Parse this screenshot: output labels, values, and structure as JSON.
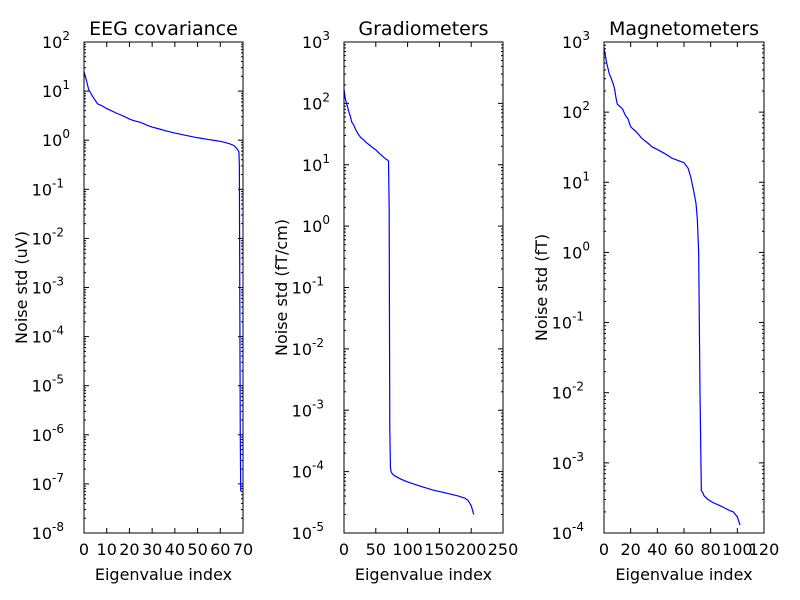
{
  "figure": {
    "background": "#ffffff",
    "line_color": "#0000ff"
  },
  "chart_data": [
    {
      "type": "line",
      "title": "EEG covariance",
      "xlabel": "Eigenvalue index",
      "ylabel": "Noise std (uV)",
      "xlim": [
        0,
        70
      ],
      "ylim": [
        1e-08,
        100
      ],
      "yscale": "log",
      "grid": false,
      "xticks": [
        0,
        10,
        20,
        30,
        40,
        50,
        60,
        70
      ],
      "yticks": [
        {
          "base": "10",
          "exp": "-8"
        },
        {
          "base": "10",
          "exp": "-7"
        },
        {
          "base": "10",
          "exp": "-6"
        },
        {
          "base": "10",
          "exp": "-5"
        },
        {
          "base": "10",
          "exp": "-4"
        },
        {
          "base": "10",
          "exp": "-3"
        },
        {
          "base": "10",
          "exp": "-2"
        },
        {
          "base": "10",
          "exp": "-1"
        },
        {
          "base": "10",
          "exp": "0"
        },
        {
          "base": "10",
          "exp": "1"
        },
        {
          "base": "10",
          "exp": "2"
        }
      ],
      "series": [
        {
          "x": [
            0,
            1,
            2,
            3,
            4,
            6,
            8,
            10,
            12,
            14,
            16,
            18,
            20,
            22,
            25,
            28,
            30,
            33,
            36,
            40,
            45,
            50,
            55,
            58,
            60,
            62,
            64,
            66,
            67,
            68,
            68.2,
            68.4,
            68.6,
            68.8,
            69
          ],
          "y": [
            25,
            17,
            11,
            9,
            7.5,
            5.5,
            5,
            4.4,
            4.0,
            3.6,
            3.3,
            3.0,
            2.7,
            2.5,
            2.3,
            2.0,
            1.85,
            1.7,
            1.55,
            1.4,
            1.25,
            1.12,
            1.03,
            0.98,
            0.95,
            0.9,
            0.85,
            0.78,
            0.7,
            0.6,
            0.58,
            0.3,
            0.0005,
            1e-06,
            7e-08
          ]
        }
      ]
    },
    {
      "type": "line",
      "title": "Gradiometers",
      "xlabel": "Eigenvalue index",
      "ylabel": "Noise std (fT/cm)",
      "xlim": [
        0,
        250
      ],
      "ylim": [
        1e-05,
        1000
      ],
      "yscale": "log",
      "grid": false,
      "xticks": [
        0,
        50,
        100,
        150,
        200,
        250
      ],
      "yticks": [
        {
          "base": "10",
          "exp": "-5"
        },
        {
          "base": "10",
          "exp": "-4"
        },
        {
          "base": "10",
          "exp": "-3"
        },
        {
          "base": "10",
          "exp": "-2"
        },
        {
          "base": "10",
          "exp": "-1"
        },
        {
          "base": "10",
          "exp": "0"
        },
        {
          "base": "10",
          "exp": "1"
        },
        {
          "base": "10",
          "exp": "2"
        },
        {
          "base": "10",
          "exp": "3"
        }
      ],
      "series": [
        {
          "x": [
            0,
            2,
            4,
            6,
            8,
            10,
            12,
            15,
            18,
            22,
            26,
            30,
            35,
            40,
            45,
            50,
            55,
            60,
            65,
            68,
            70,
            71,
            72,
            73,
            74,
            76,
            80,
            90,
            100,
            120,
            140,
            160,
            180,
            190,
            195,
            200,
            204
          ],
          "y": [
            170,
            120,
            100,
            85,
            70,
            62,
            50,
            45,
            38,
            32,
            28,
            26,
            23,
            21,
            19,
            17.5,
            15.5,
            14,
            12.5,
            12,
            11.5,
            2,
            0.0005,
            0.00012,
            0.0001,
            9.2e-05,
            8.5e-05,
            7.5e-05,
            6.8e-05,
            5.8e-05,
            5e-05,
            4.5e-05,
            4e-05,
            3.7e-05,
            3.4e-05,
            2.8e-05,
            2e-05
          ]
        }
      ]
    },
    {
      "type": "line",
      "title": "Magnetometers",
      "xlabel": "Eigenvalue index",
      "ylabel": "Noise std (fT)",
      "xlim": [
        0,
        120
      ],
      "ylim": [
        0.0001,
        1000
      ],
      "yscale": "log",
      "grid": false,
      "xticks": [
        0,
        20,
        40,
        60,
        80,
        100,
        120
      ],
      "yticks": [
        {
          "base": "10",
          "exp": "-4"
        },
        {
          "base": "10",
          "exp": "-3"
        },
        {
          "base": "10",
          "exp": "-2"
        },
        {
          "base": "10",
          "exp": "-1"
        },
        {
          "base": "10",
          "exp": "0"
        },
        {
          "base": "10",
          "exp": "1"
        },
        {
          "base": "10",
          "exp": "2"
        },
        {
          "base": "10",
          "exp": "3"
        }
      ],
      "series": [
        {
          "x": [
            0,
            1,
            2,
            3,
            4,
            5,
            6,
            7,
            8,
            9,
            10,
            12,
            14,
            16,
            18,
            20,
            22,
            24,
            26,
            28,
            30,
            33,
            36,
            39,
            42,
            45,
            48,
            51,
            54,
            57,
            60,
            63,
            65,
            67,
            69,
            70,
            71,
            72,
            73,
            74,
            75,
            78,
            82,
            86,
            90,
            94,
            97,
            100,
            102
          ],
          "y": [
            800,
            650,
            500,
            420,
            350,
            320,
            280,
            250,
            210,
            160,
            130,
            120,
            110,
            90,
            80,
            62,
            57,
            53,
            48,
            43,
            40,
            36,
            32,
            30,
            28,
            26,
            24,
            22,
            21,
            20,
            19,
            16,
            12,
            8,
            5,
            3,
            1,
            0.01,
            0.0004,
            0.00038,
            0.00034,
            0.0003,
            0.00027,
            0.00025,
            0.00023,
            0.00021,
            0.0002,
            0.00017,
            0.00013
          ]
        }
      ]
    }
  ]
}
